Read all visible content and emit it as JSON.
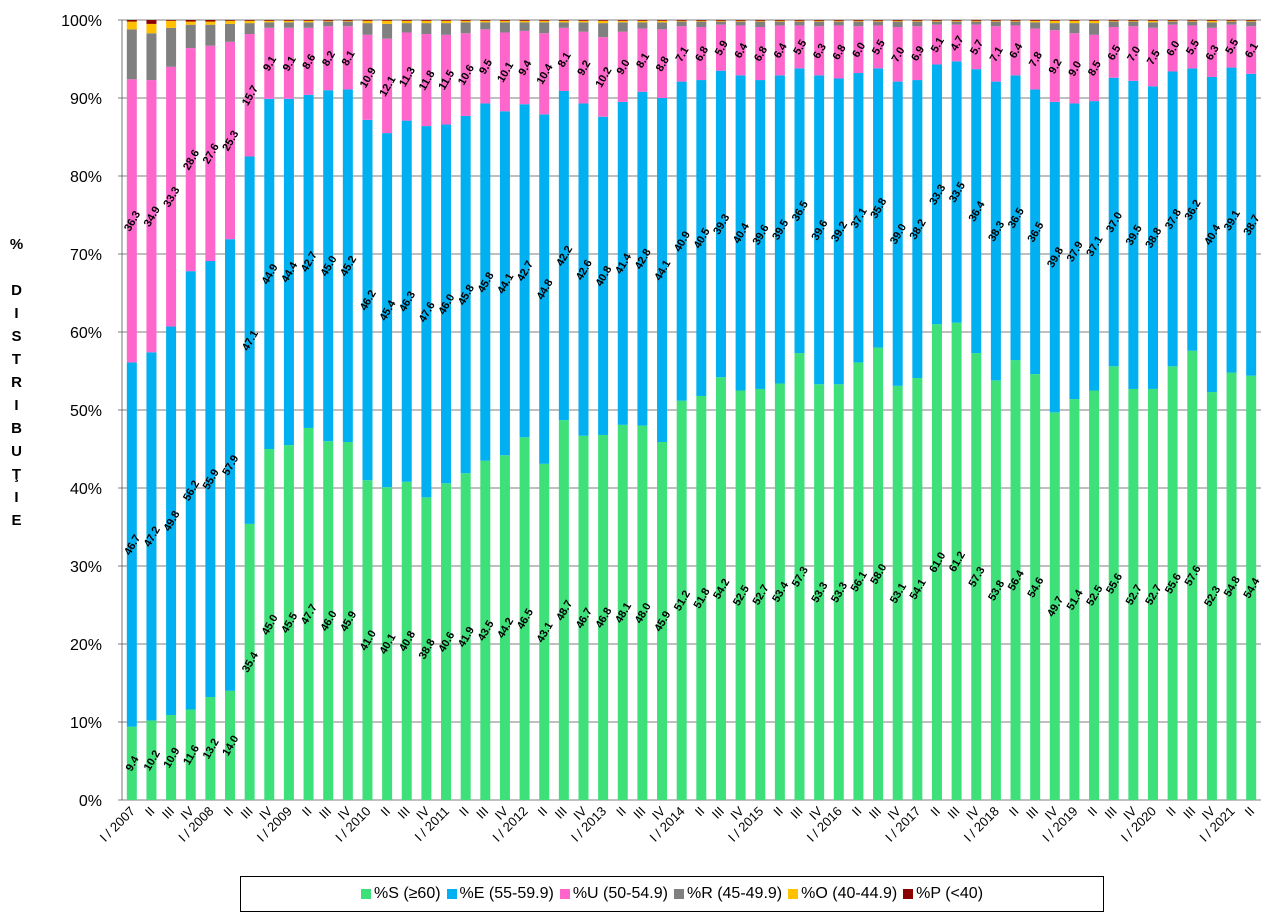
{
  "chart_data": {
    "type": "stacked_bar",
    "y_label": "% DISTRIBUŢIE",
    "categories": [
      "I / 2007",
      "II",
      "III",
      "IV",
      "I / 2008",
      "II",
      "III",
      "IV",
      "I / 2009",
      "II",
      "III",
      "IV",
      "I / 2010",
      "II",
      "III",
      "IV",
      "I / 2011",
      "II",
      "III",
      "IV",
      "I / 2012",
      "II",
      "III",
      "IV",
      "I / 2013",
      "II",
      "III",
      "IV",
      "I / 2014",
      "II",
      "III",
      "IV",
      "I / 2015",
      "II",
      "III",
      "IV",
      "I / 2016",
      "II",
      "III",
      "IV",
      "I / 2017",
      "II",
      "III",
      "IV",
      "I / 2018",
      "II",
      "III",
      "IV",
      "I / 2019",
      "II",
      "III",
      "IV",
      "I / 2020",
      "II",
      "III",
      "IV",
      "I / 2021",
      "II"
    ],
    "ylim": [
      0,
      100
    ],
    "yticks": [
      {
        "value": 0,
        "label": "0%"
      },
      {
        "value": 10,
        "label": "10%"
      },
      {
        "value": 20,
        "label": "20%"
      },
      {
        "value": 30,
        "label": "30%"
      },
      {
        "value": 40,
        "label": "40%"
      },
      {
        "value": 50,
        "label": "50%"
      },
      {
        "value": 60,
        "label": "60%"
      },
      {
        "value": 70,
        "label": "70%"
      },
      {
        "value": 80,
        "label": "80%"
      },
      {
        "value": 90,
        "label": "90%"
      },
      {
        "value": 100,
        "label": "100%"
      }
    ],
    "grid": true,
    "series": [
      {
        "name": "%S (≥60)",
        "color": "#3ee07a",
        "values": [
          9.4,
          10.2,
          10.9,
          11.6,
          13.2,
          14.0,
          35.4,
          45.0,
          45.5,
          47.7,
          46.0,
          45.9,
          41.0,
          40.1,
          40.8,
          38.8,
          40.6,
          41.9,
          43.5,
          44.2,
          46.5,
          43.1,
          48.7,
          46.7,
          46.8,
          48.1,
          48.0,
          45.9,
          51.2,
          51.8,
          54.2,
          52.5,
          52.7,
          53.4,
          57.3,
          53.3,
          53.3,
          56.1,
          58.0,
          53.1,
          54.1,
          61.0,
          61.2,
          57.3,
          53.8,
          56.4,
          54.6,
          49.7,
          51.4,
          52.5,
          55.6,
          52.7,
          52.7,
          55.6,
          57.6,
          52.3,
          54.8,
          54.4
        ],
        "value_labels": [
          "9.4",
          "10.2",
          "10.9",
          "11.6",
          "13.2",
          "14.0",
          "35.4",
          "45.0",
          "45.5",
          "47.7",
          "46.0",
          "45.9",
          "41.0",
          "40.1",
          "40.8",
          "38.8",
          "40.6",
          "41.9",
          "43.5",
          "44.2",
          "46.5",
          "43.1",
          "48.7",
          "46.7",
          "46.8",
          "48.1",
          "48.0",
          "45.9",
          "51.2",
          "51.8",
          "54.2",
          "52.5",
          "52.7",
          "53.4",
          "57.3",
          "53.3",
          "53.3",
          "56.1",
          "58.0",
          "53.1",
          "54.1",
          "61.0",
          "61.2",
          "57.3",
          "53.8",
          "56.4",
          "54.6",
          "49.7",
          "51.4",
          "52.5",
          "55.6",
          "52.7",
          "52.7",
          "55.6",
          "57.6",
          "52.3",
          "54.8",
          "54.4"
        ]
      },
      {
        "name": "%E (55-59.9)",
        "color": "#00b0f0",
        "values": [
          46.7,
          47.2,
          49.8,
          56.2,
          55.9,
          57.9,
          47.1,
          44.9,
          44.4,
          42.7,
          45.0,
          45.2,
          46.2,
          45.4,
          46.3,
          47.6,
          46.0,
          45.8,
          45.8,
          44.1,
          42.7,
          44.8,
          42.2,
          42.6,
          40.8,
          41.4,
          42.8,
          44.1,
          40.9,
          40.5,
          39.3,
          40.4,
          39.6,
          39.5,
          36.5,
          39.6,
          39.2,
          37.1,
          35.8,
          39.0,
          38.2,
          33.3,
          33.5,
          36.4,
          38.3,
          36.5,
          36.5,
          39.8,
          37.9,
          37.1,
          37.0,
          39.5,
          38.8,
          37.8,
          36.2,
          40.4,
          39.1,
          38.7
        ],
        "value_labels": [
          "46.7",
          "47.2",
          "49.8",
          "56.2",
          "55.9",
          "57.9",
          "47.1",
          "44.9",
          "44.4",
          "42.7",
          "45.0",
          "45.2",
          "46.2",
          "45.4",
          "46.3",
          "47.6",
          "46.0",
          "45.8",
          "45.8",
          "44.1",
          "42.7",
          "44.8",
          "42.2",
          "42.6",
          "40.8",
          "41.4",
          "42.8",
          "44.1",
          "40.9",
          "40.5",
          "39.3",
          "40.4",
          "39.6",
          "39.5",
          "36.5",
          "39.6",
          "39.2",
          "37.1",
          "35.8",
          "39.0",
          "38.2",
          "33.3",
          "33.5",
          "36.4",
          "38.3",
          "36.5",
          "36.5",
          "39.8",
          "37.9",
          "37.1",
          "37.0",
          "39.5",
          "38.8",
          "37.8",
          "36.2",
          "40.4",
          "39.1",
          "38.7"
        ]
      },
      {
        "name": "%U (50-54.9)",
        "color": "#ff66cc",
        "values": [
          36.3,
          34.9,
          33.3,
          28.6,
          27.6,
          25.3,
          15.7,
          9.1,
          9.1,
          8.6,
          8.2,
          8.1,
          10.9,
          12.1,
          11.3,
          11.8,
          11.5,
          10.6,
          9.5,
          10.1,
          9.4,
          10.4,
          8.1,
          9.2,
          10.2,
          9.0,
          8.1,
          8.8,
          7.1,
          6.8,
          5.9,
          6.4,
          6.8,
          6.4,
          5.5,
          6.3,
          6.8,
          6.0,
          5.5,
          7.0,
          6.9,
          5.1,
          4.7,
          5.7,
          7.1,
          6.4,
          7.8,
          9.2,
          9.0,
          8.5,
          6.5,
          7.0,
          7.5,
          6.0,
          5.5,
          6.3,
          5.5,
          6.1
        ],
        "value_labels": [
          "36.3",
          "34.9",
          "33.3",
          "28.6",
          "27.6",
          "25.3",
          "15.7",
          "9.1",
          "9.1",
          "8.6",
          "8.2",
          "8.1",
          "10.9",
          "12.1",
          "11.3",
          "11.8",
          "11.5",
          "10.6",
          "9.5",
          "10.1",
          "9.4",
          "10.4",
          "8.1",
          "9.2",
          "10.2",
          "9.0",
          "8.1",
          "8.8",
          "7.1",
          "6.8",
          "5.9",
          "6.4",
          "6.8",
          "6.4",
          "5.5",
          "6.3",
          "6.8",
          "6.0",
          "5.5",
          "7.0",
          "6.9",
          "5.1",
          "4.7",
          "5.7",
          "7.1",
          "6.4",
          "7.8",
          "9.2",
          "9.0",
          "8.5",
          "6.5",
          "7.0",
          "7.5",
          "6.0",
          "5.5",
          "6.3",
          "5.5",
          "6.1"
        ]
      },
      {
        "name": "%R (45-49.9)",
        "color": "#808080",
        "values": [
          6.4,
          6.0,
          5.0,
          3.0,
          2.7,
          2.3,
          1.4,
          0.7,
          0.7,
          0.7,
          0.6,
          0.6,
          1.5,
          1.9,
          1.2,
          1.4,
          1.5,
          1.4,
          0.9,
          1.3,
          1.1,
          1.4,
          0.7,
          1.2,
          1.8,
          1.2,
          0.8,
          0.9,
          0.6,
          0.7,
          0.4,
          0.5,
          0.7,
          0.5,
          0.5,
          0.6,
          0.5,
          0.6,
          0.5,
          0.7,
          0.6,
          0.4,
          0.4,
          0.4,
          0.6,
          0.5,
          0.8,
          0.9,
          1.3,
          1.5,
          0.7,
          0.6,
          0.7,
          0.4,
          0.5,
          0.7,
          0.4,
          0.6
        ]
      },
      {
        "name": "%O (40-44.9)",
        "color": "#ffc000",
        "values": [
          1.0,
          1.2,
          0.9,
          0.4,
          0.4,
          0.4,
          0.3,
          0.2,
          0.2,
          0.2,
          0.1,
          0.1,
          0.3,
          0.4,
          0.3,
          0.3,
          0.3,
          0.2,
          0.2,
          0.2,
          0.2,
          0.2,
          0.2,
          0.2,
          0.3,
          0.2,
          0.2,
          0.2,
          0.1,
          0.1,
          0.1,
          0.1,
          0.1,
          0.1,
          0.1,
          0.1,
          0.1,
          0.1,
          0.1,
          0.1,
          0.1,
          0.1,
          0.1,
          0.1,
          0.1,
          0.1,
          0.2,
          0.3,
          0.3,
          0.3,
          0.1,
          0.1,
          0.2,
          0.1,
          0.1,
          0.2,
          0.1,
          0.1
        ]
      },
      {
        "name": "%P (<40)",
        "color": "#8b0000",
        "values": [
          0.2,
          0.5,
          0.1,
          0.2,
          0.2,
          0.1,
          0.1,
          0.1,
          0.1,
          0.1,
          0.1,
          0.1,
          0.1,
          0.1,
          0.1,
          0.1,
          0.1,
          0.1,
          0.1,
          0.1,
          0.1,
          0.1,
          0.1,
          0.1,
          0.1,
          0.1,
          0.1,
          0.1,
          0.1,
          0.1,
          0.1,
          0.1,
          0.1,
          0.1,
          0.1,
          0.1,
          0.1,
          0.1,
          0.1,
          0.1,
          0.1,
          0.1,
          0.1,
          0.1,
          0.1,
          0.1,
          0.1,
          0.1,
          0.1,
          0.1,
          0.1,
          0.1,
          0.1,
          0.1,
          0.1,
          0.1,
          0.1,
          0.1
        ]
      }
    ]
  }
}
